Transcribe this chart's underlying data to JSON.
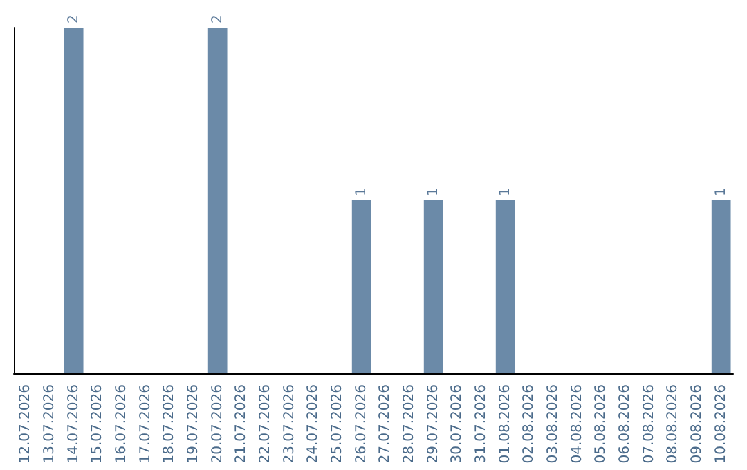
{
  "chart_data": {
    "type": "bar",
    "categories": [
      "12.07.2026",
      "13.07.2026",
      "14.07.2026",
      "15.07.2026",
      "16.07.2026",
      "17.07.2026",
      "18.07.2026",
      "19.07.2026",
      "20.07.2026",
      "21.07.2026",
      "22.07.2026",
      "23.07.2026",
      "24.07.2026",
      "25.07.2026",
      "26.07.2026",
      "27.07.2026",
      "28.07.2026",
      "29.07.2026",
      "30.07.2026",
      "31.07.2026",
      "01.08.2026",
      "02.08.2026",
      "03.08.2026",
      "04.08.2026",
      "05.08.2026",
      "06.08.2026",
      "07.08.2026",
      "08.08.2026",
      "09.08.2026",
      "10.08.2026"
    ],
    "values": [
      0,
      0,
      2,
      0,
      0,
      0,
      0,
      0,
      2,
      0,
      0,
      0,
      0,
      0,
      1,
      0,
      0,
      1,
      0,
      0,
      1,
      0,
      0,
      0,
      0,
      0,
      0,
      0,
      0,
      1
    ],
    "value_labels": [
      null,
      null,
      "2",
      null,
      null,
      null,
      null,
      null,
      "2",
      null,
      null,
      null,
      null,
      null,
      "1",
      null,
      null,
      "1",
      null,
      null,
      "1",
      null,
      null,
      null,
      null,
      null,
      null,
      null,
      null,
      "1"
    ],
    "color": "#6b8aa8",
    "tick_labels": "x"
  }
}
